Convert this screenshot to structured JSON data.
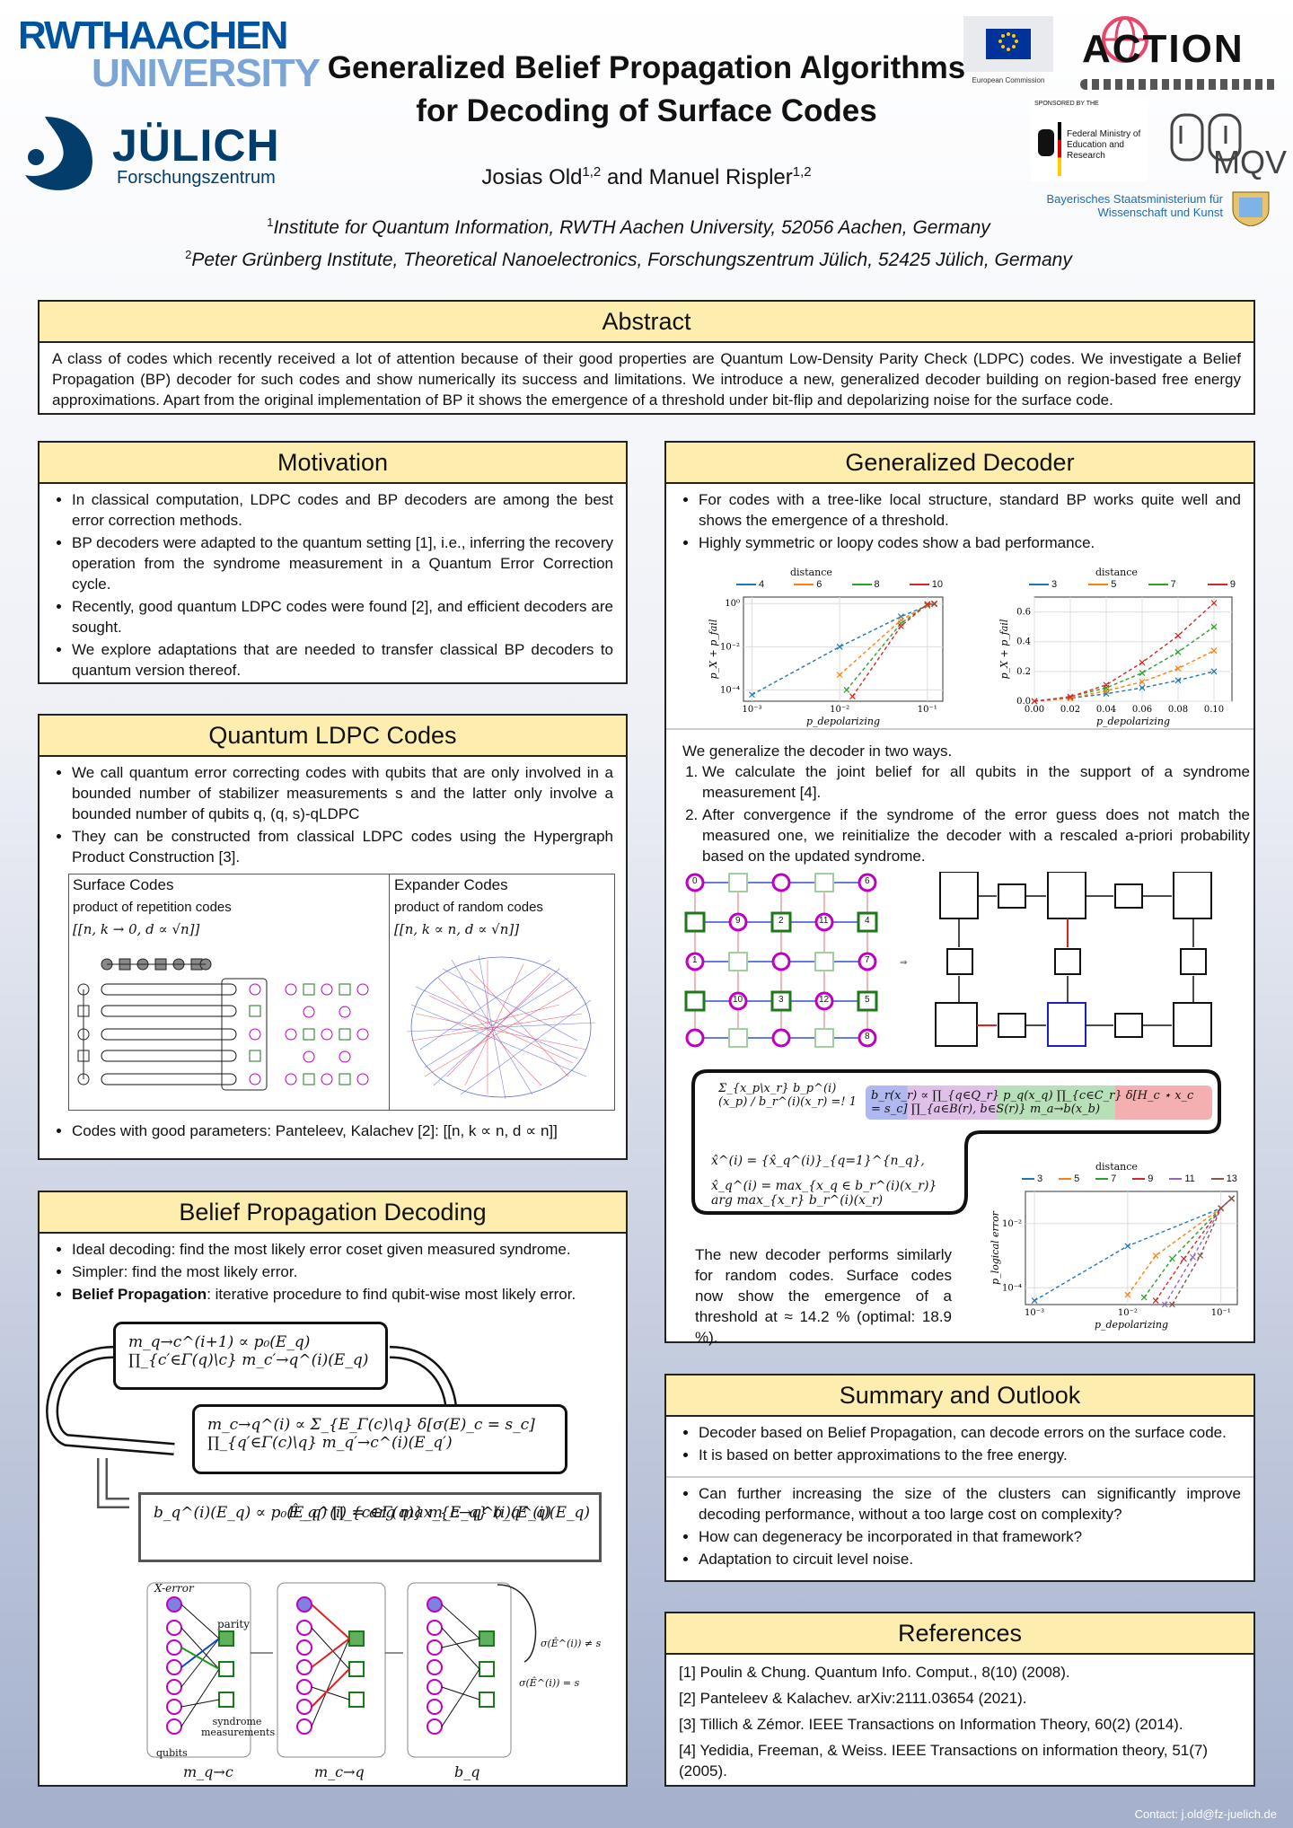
{
  "logos": {
    "rwth_line1": "RWTHAACHEN",
    "rwth_line2": "UNIVERSITY",
    "julich": "JÜLICH",
    "julich_sub": "Forschungszentrum",
    "eu": "European Commission",
    "action": "ACTION",
    "bmbf_top": "SPONSORED BY THE",
    "bmbf": "Federal Ministry of Education and Research",
    "mqv": "MQV",
    "bavaria": "Bayerisches Staatsministerium für Wissenschaft und Kunst"
  },
  "header": {
    "title_line1": "Generalized Belief Propagation Algorithms",
    "title_line2": "for Decoding of Surface Codes",
    "author1": "Josias Old",
    "author1_sup": "1,2",
    "and": " and ",
    "author2": "Manuel Rispler",
    "author2_sup": "1,2",
    "affil1_sup": "1",
    "affil1": "Institute for Quantum Information, RWTH Aachen University, 52056 Aachen, Germany",
    "affil2_sup": "2",
    "affil2": "Peter Grünberg Institute, Theoretical Nanoelectronics, Forschungszentrum Jülich, 52425 Jülich, Germany"
  },
  "abstract": {
    "heading": "Abstract",
    "text": "A class of codes which recently received a lot of attention because of their good properties are Quantum Low-Density Parity Check (LDPC) codes. We investigate a Belief Propagation (BP) decoder for such codes and show numerically its success and limitations. We introduce a new, generalized decoder building on region-based free energy approximations. Apart from the original implementation of BP it shows the emergence of a threshold under bit-flip and depolarizing noise for the surface code."
  },
  "motivation": {
    "heading": "Motivation",
    "items": [
      "In classical computation, LDPC codes and BP decoders are among the best error correction methods.",
      "BP decoders were adapted to the quantum setting [1], i.e., inferring the recovery operation from the syndrome measurement in a Quantum Error Correction cycle.",
      "Recently, good quantum LDPC codes were found [2], and efficient decoders are sought.",
      "We explore adaptations that are needed to transfer classical BP decoders to quantum version thereof."
    ]
  },
  "qldpc": {
    "heading": "Quantum LDPC Codes",
    "item1": "We call quantum error correcting codes with qubits that are only involved in a bounded number of stabilizer measurements s and the latter only involve a bounded number of qubits q, (q, s)-qLDPC",
    "item2": "They can be constructed from classical LDPC codes using the Hypergraph Product Construction [3].",
    "surface_title": "Surface Codes",
    "surface_sub": "product of repetition codes",
    "surface_params": "[[n, k → 0, d ∝ √n]]",
    "expander_title": "Expander Codes",
    "expander_sub": "product of random codes",
    "expander_params": "[[n, k ∝ n, d ∝ √n]]",
    "item3": "Codes with good parameters: Panteleev, Kalachev [2]: [[n, k ∝ n, d ∝ n]]"
  },
  "bp": {
    "heading": "Belief Propagation Decoding",
    "item1": "Ideal decoding: find the most likely error coset given measured syndrome.",
    "item2": "Simpler: find the most likely error.",
    "item3_bold": "Belief Propagation",
    "item3": ": iterative procedure to find qubit-wise most likely error.",
    "eq1": "m_q→c^(i+1) ∝ p₀(E_q) ∏_{c′∈Γ(q)\\c} m_c′→q^(i)(E_q)",
    "eq2": "m_c→q^(i) ∝ Σ_{E_Γ(c)\\q} δ[σ(E)_c = s_c] ∏_{q′∈Γ(c)\\q} m_q′→c^(i)(E_q′)",
    "eq3": "b_q^(i)(E_q) ∝ p₀(E_q) ∏_{c∈Γ(q)} m_c→q^(i)(E_q)",
    "eq4": "Ê_q^(i) = arg max_{E_q} b_q^(i)(E_q)",
    "diag_xerror": "X-error",
    "diag_parity": "parity",
    "diag_syndrome": "syndrome measurements",
    "diag_qubits": "qubits",
    "diag_neq": "σ(Ê^(i)) ≠ s",
    "diag_eq": "σ(Ê^(i)) = s",
    "lab_m1": "m_q→c",
    "lab_m2": "m_c→q",
    "lab_b": "b_q"
  },
  "gd": {
    "heading": "Generalized Decoder",
    "item1": "For codes with a tree-like local structure, standard BP works quite well and shows the emergence of a threshold.",
    "item2": "Highly symmetric or loopy codes show a bad performance.",
    "plot1_legend_title": "distance",
    "plot1_legend": [
      "4",
      "6",
      "8",
      "10"
    ],
    "plot1_ylabel": "p_X + p_fail",
    "plot1_xlabel": "p_depolarizing",
    "plot1_xticks": [
      "10⁻³",
      "10⁻²",
      "10⁻¹"
    ],
    "plot1_yticks": [
      "10⁰",
      "10⁻²",
      "10⁻⁴"
    ],
    "plot2_legend_title": "distance",
    "plot2_legend": [
      "3",
      "5",
      "7",
      "9"
    ],
    "plot2_ylabel": "p_X + p_fail",
    "plot2_xlabel": "p_depolarizing",
    "plot2_xticks": [
      "0.00",
      "0.02",
      "0.04",
      "0.06",
      "0.08",
      "0.10"
    ],
    "plot2_yticks": [
      "0.6",
      "0.4",
      "0.2",
      "0.0"
    ],
    "intro": "We generalize the decoder in two ways.",
    "step1": "We calculate the joint belief for all qubits in the support of a syndrome measurement [4].",
    "step2": "After convergence if the syndrome of the error guess does not match the measured one, we reinitialize the decoder with a rescaled a-priori probability based on the updated syndrome.",
    "grid_labels": [
      "0",
      "6",
      "9",
      "2",
      "11",
      "4",
      "1",
      "7",
      "10",
      "3",
      "12",
      "5",
      "8"
    ],
    "eq_cons": "Σ_{x_p\\x_r} b_p^(i)(x_p) / b_r^(i)(x_r) =! 1",
    "eq_b": "b_r(x_r) ∝ ∏_{q∈Q_r} p_q(x_q) ∏_{c∈C_r} δ[H_c ⋆ x_c = s_c] ∏_{a∈B(r), b∈S(r)} m_a→b(x_b)",
    "eq_x1": "x̂^(i) = {x̂_q^(i)}_{q=1}^{n_q},",
    "eq_x2": "x̂_q^(i) = max_{x_q ∈ b_r^(i)(x_r)} arg max_{x_r} b_r^(i)(x_r)",
    "result": "The new decoder performs similarly for random codes. Surface codes now show the emergence of a threshold at ≈ 14.2 % (optimal: 18.9 %).",
    "plot3_legend_title": "distance",
    "plot3_legend": [
      "3",
      "5",
      "7",
      "9",
      "11",
      "13"
    ],
    "plot3_ylabel": "p_logical error",
    "plot3_xlabel": "p_depolarizing",
    "plot3_xticks": [
      "10⁻³",
      "10⁻²",
      "10⁻¹"
    ],
    "plot3_yticks": [
      "10⁻²",
      "10⁻⁴"
    ]
  },
  "summary": {
    "heading": "Summary and Outlook",
    "items_a": [
      "Decoder based on Belief Propagation, can decode errors on the surface code.",
      "It is based on better approximations to the free energy."
    ],
    "items_b": [
      "Can further increasing the size of the clusters can significantly improve decoding performance, without a too large cost on complexity?",
      "How can degeneracy be incorporated in that framework?",
      "Adaptation to circuit level noise."
    ]
  },
  "references": {
    "heading": "References",
    "items": [
      "[1] Poulin & Chung. Quantum Info. Comput., 8(10) (2008).",
      "[2] Panteleev & Kalachev. arXiv:2111.03654 (2021).",
      "[3] Tillich & Zémor. IEEE Transactions on Information Theory, 60(2) (2014).",
      "[4] Yedidia, Freeman, & Weiss. IEEE Transactions on information theory, 51(7) (2005)."
    ]
  },
  "contact": "Contact: j.old@fz-juelich.de",
  "colors": {
    "header_bg": "#fdeeb0",
    "rwth_blue": "#00549f",
    "julich_blue": "#023d6b",
    "series_blue": "#1f77b4",
    "series_orange": "#ff7f0e",
    "series_green": "#2ca02c",
    "series_red": "#d62728",
    "series_purple": "#9467bd",
    "series_brown": "#8c564b",
    "magenta": "#c000c0"
  },
  "chart_data": [
    {
      "type": "line",
      "title": "",
      "xlabel": "p_depolarizing",
      "ylabel": "p_X + p_fail",
      "xscale": "log",
      "yscale": "log",
      "xlim": [
        0.0008,
        0.15
      ],
      "ylim": [
        3e-05,
        2
      ],
      "legend_title": "distance",
      "series": [
        {
          "name": "4",
          "x": [
            0.001,
            0.01,
            0.05,
            0.1,
            0.12
          ],
          "y": [
            6e-05,
            0.01,
            0.25,
            0.8,
            0.95
          ]
        },
        {
          "name": "6",
          "x": [
            0.01,
            0.05,
            0.1,
            0.12
          ],
          "y": [
            0.0005,
            0.17,
            0.85,
            1.0
          ]
        },
        {
          "name": "8",
          "x": [
            0.012,
            0.05,
            0.1,
            0.12
          ],
          "y": [
            0.0001,
            0.12,
            0.9,
            1.0
          ]
        },
        {
          "name": "10",
          "x": [
            0.014,
            0.05,
            0.1,
            0.12
          ],
          "y": [
            5e-05,
            0.09,
            0.95,
            1.0
          ]
        }
      ]
    },
    {
      "type": "line",
      "title": "",
      "xlabel": "p_depolarizing",
      "ylabel": "p_X + p_fail",
      "xlim": [
        0,
        0.11
      ],
      "ylim": [
        0,
        0.7
      ],
      "legend_title": "distance",
      "series": [
        {
          "name": "3",
          "x": [
            0,
            0.02,
            0.04,
            0.06,
            0.08,
            0.1
          ],
          "y": [
            0,
            0.02,
            0.05,
            0.09,
            0.14,
            0.2
          ]
        },
        {
          "name": "5",
          "x": [
            0,
            0.02,
            0.04,
            0.06,
            0.08,
            0.1
          ],
          "y": [
            0,
            0.02,
            0.07,
            0.13,
            0.22,
            0.34
          ]
        },
        {
          "name": "7",
          "x": [
            0,
            0.02,
            0.04,
            0.06,
            0.08,
            0.1
          ],
          "y": [
            0,
            0.03,
            0.09,
            0.19,
            0.33,
            0.5
          ]
        },
        {
          "name": "9",
          "x": [
            0,
            0.02,
            0.04,
            0.06,
            0.08,
            0.1
          ],
          "y": [
            0,
            0.03,
            0.11,
            0.26,
            0.44,
            0.66
          ]
        }
      ]
    },
    {
      "type": "line",
      "title": "",
      "xlabel": "p_depolarizing",
      "ylabel": "p_logical error",
      "xscale": "log",
      "yscale": "log",
      "xlim": [
        0.0008,
        0.15
      ],
      "ylim": [
        3e-05,
        0.1
      ],
      "legend_title": "distance",
      "series": [
        {
          "name": "3",
          "x": [
            0.001,
            0.01,
            0.1,
            0.13
          ],
          "y": [
            4e-05,
            0.002,
            0.03,
            0.06
          ]
        },
        {
          "name": "5",
          "x": [
            0.01,
            0.02,
            0.1,
            0.13
          ],
          "y": [
            6e-05,
            0.001,
            0.03,
            0.06
          ]
        },
        {
          "name": "7",
          "x": [
            0.015,
            0.03,
            0.1,
            0.13
          ],
          "y": [
            5e-05,
            0.0008,
            0.03,
            0.06
          ]
        },
        {
          "name": "9",
          "x": [
            0.02,
            0.04,
            0.1,
            0.13
          ],
          "y": [
            4e-05,
            0.0008,
            0.03,
            0.06
          ]
        },
        {
          "name": "11",
          "x": [
            0.025,
            0.05,
            0.1,
            0.13
          ],
          "y": [
            3e-05,
            0.0009,
            0.03,
            0.06
          ]
        },
        {
          "name": "13",
          "x": [
            0.03,
            0.06,
            0.1,
            0.13
          ],
          "y": [
            3e-05,
            0.001,
            0.03,
            0.06
          ]
        }
      ]
    }
  ]
}
